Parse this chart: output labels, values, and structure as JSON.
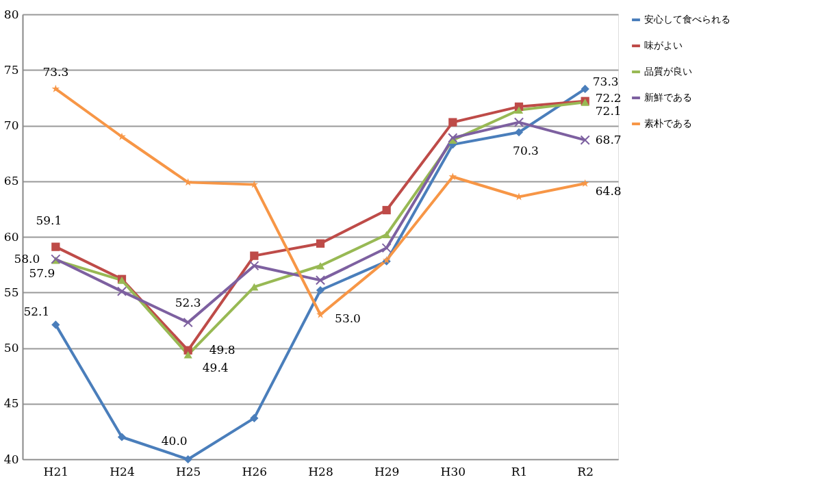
{
  "chart_data": {
    "type": "line",
    "categories": [
      "H21",
      "H24",
      "H25",
      "H26",
      "H28",
      "H29",
      "H30",
      "R1",
      "R2"
    ],
    "series": [
      {
        "name": "安心して食べられる",
        "color": "#4a7ebb",
        "marker": "diamond",
        "values": [
          52.1,
          42.0,
          40.0,
          43.7,
          55.2,
          57.8,
          68.3,
          69.4,
          73.3
        ],
        "value_labels": [
          "52.1",
          null,
          "40.0",
          null,
          null,
          null,
          null,
          null,
          "73.3"
        ]
      },
      {
        "name": "味がよい",
        "color": "#be4b48",
        "marker": "square",
        "values": [
          59.1,
          56.2,
          49.8,
          58.3,
          59.4,
          62.4,
          70.3,
          71.7,
          72.2
        ],
        "value_labels": [
          "59.1",
          null,
          "49.8",
          null,
          null,
          null,
          null,
          null,
          "72.2"
        ]
      },
      {
        "name": "品質が良い",
        "color": "#98b954",
        "marker": "triangle",
        "values": [
          57.9,
          56.1,
          49.4,
          55.5,
          57.4,
          60.2,
          68.7,
          71.4,
          72.1
        ],
        "value_labels": [
          "57.9",
          null,
          "49.4",
          null,
          null,
          null,
          null,
          null,
          "72.1"
        ]
      },
      {
        "name": "新鮮である",
        "color": "#7d60a0",
        "marker": "cross",
        "values": [
          58.0,
          55.1,
          52.3,
          57.4,
          56.1,
          59.0,
          68.9,
          70.3,
          68.7
        ],
        "value_labels": [
          "58.0",
          null,
          "52.3",
          null,
          null,
          null,
          null,
          "70.3",
          "68.7"
        ]
      },
      {
        "name": "素朴である",
        "color": "#f79646",
        "marker": "star",
        "values": [
          73.3,
          69.0,
          64.9,
          64.7,
          53.0,
          57.9,
          65.4,
          63.6,
          64.8
        ],
        "value_labels": [
          "73.3",
          null,
          null,
          null,
          "53.0",
          null,
          null,
          null,
          "64.8"
        ]
      }
    ],
    "ylim": [
      40,
      80
    ],
    "yticks": [
      40,
      45,
      50,
      55,
      60,
      65,
      70,
      75,
      80
    ],
    "grid": "y",
    "legend": "right"
  }
}
